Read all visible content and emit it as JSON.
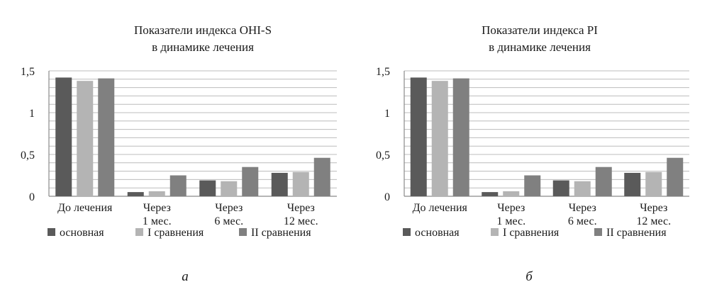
{
  "colors": {
    "osnovnaya": "#5a5a5a",
    "sravneniya_1": "#b4b4b4",
    "sravneniya_2": "#808080",
    "grid": "#bcbcbc"
  },
  "chart_data": [
    {
      "type": "bar",
      "panel_label": "а",
      "title_lines": [
        "Показатели индекса OHI-S",
        "в динамике лечения"
      ],
      "categories": [
        [
          "До лечения"
        ],
        [
          "Через",
          "1 мес."
        ],
        [
          "Через",
          "6 мес."
        ],
        [
          "Через",
          "12 мес."
        ]
      ],
      "series": [
        {
          "name": "основная",
          "color_key": "osnovnaya",
          "values": [
            1.42,
            0.05,
            0.19,
            0.28
          ]
        },
        {
          "name": "I сравнения",
          "color_key": "sravneniya_1",
          "values": [
            1.38,
            0.06,
            0.18,
            0.29
          ]
        },
        {
          "name": "II сравнения",
          "color_key": "sravneniya_2",
          "values": [
            1.41,
            0.25,
            0.35,
            0.46
          ]
        }
      ],
      "y_ticks": [
        {
          "value": 0,
          "label": "0"
        },
        {
          "value": 0.5,
          "label": "0,5"
        },
        {
          "value": 1,
          "label": "1"
        },
        {
          "value": 1.5,
          "label": "1,5"
        }
      ],
      "ylim": [
        0,
        1.5
      ],
      "grid_step": 0.1,
      "grid": true,
      "legend_position": "bottom"
    },
    {
      "type": "bar",
      "panel_label": "б",
      "title_lines": [
        "Показатели индекса PI",
        "в динамике лечения"
      ],
      "categories": [
        [
          "До лечения"
        ],
        [
          "Через",
          "1 мес."
        ],
        [
          "Через",
          "6 мес."
        ],
        [
          "Через",
          "12 мес."
        ]
      ],
      "series": [
        {
          "name": "основная",
          "color_key": "osnovnaya",
          "values": [
            1.42,
            0.05,
            0.19,
            0.28
          ]
        },
        {
          "name": "I сравнения",
          "color_key": "sravneniya_1",
          "values": [
            1.38,
            0.06,
            0.18,
            0.29
          ]
        },
        {
          "name": "II сравнения",
          "color_key": "sravneniya_2",
          "values": [
            1.41,
            0.25,
            0.35,
            0.46
          ]
        }
      ],
      "y_ticks": [
        {
          "value": 0,
          "label": "0"
        },
        {
          "value": 0.5,
          "label": "0,5"
        },
        {
          "value": 1,
          "label": "1"
        },
        {
          "value": 1.5,
          "label": "1,5"
        }
      ],
      "ylim": [
        0,
        1.5
      ],
      "grid_step": 0.1,
      "grid": true,
      "legend_position": "bottom"
    }
  ]
}
